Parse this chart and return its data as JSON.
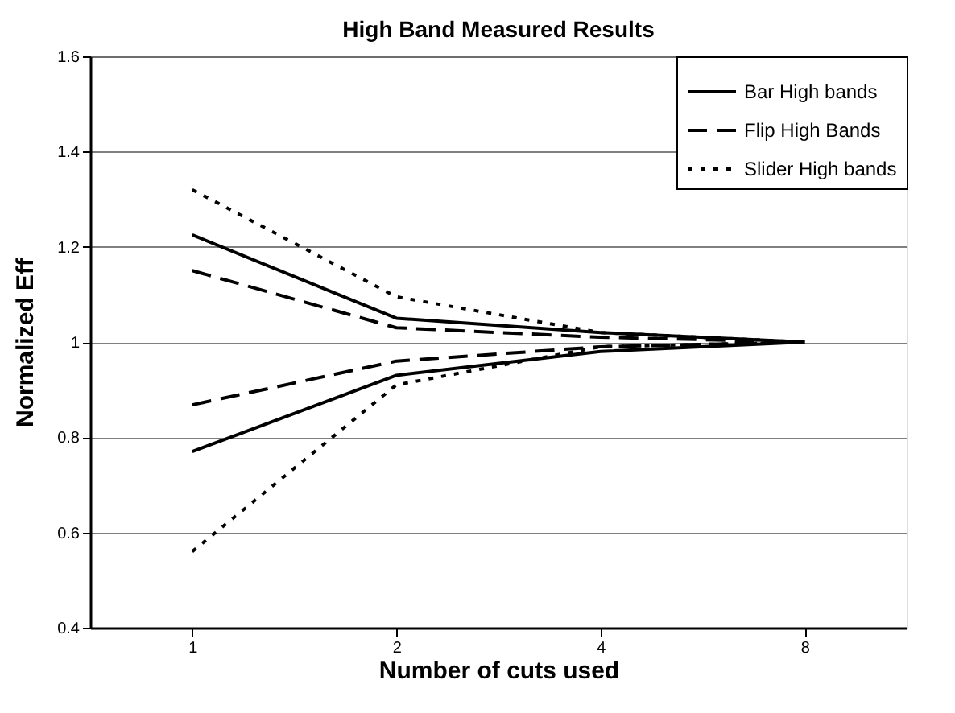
{
  "chart_data": {
    "type": "line",
    "title": "High Band Measured Results",
    "xlabel": "Number of cuts used",
    "ylabel": "Normalized Eff",
    "categories": [
      "1",
      "2",
      "4",
      "8"
    ],
    "series": [
      {
        "name": "Bar High bands",
        "color": "#000000",
        "line_style": "solid",
        "values": [
          1.225,
          1.05,
          1.02,
          1.0
        ]
      },
      {
        "name": "Flip High Bands",
        "color": "#000000",
        "line_style": "dashed",
        "values": [
          1.15,
          1.03,
          1.01,
          1.0
        ]
      },
      {
        "name": "Slider High bands",
        "color": "#000000",
        "line_style": "dotted",
        "values": [
          1.32,
          1.095,
          1.02,
          1.0
        ]
      },
      {
        "color": "#000000",
        "line_style": "solid",
        "values": [
          0.77,
          0.93,
          0.98,
          1.0
        ]
      },
      {
        "color": "#000000",
        "line_style": "dashed",
        "values": [
          0.868,
          0.96,
          0.99,
          1.0
        ]
      },
      {
        "color": "#000000",
        "line_style": "dotted",
        "values": [
          0.56,
          0.91,
          0.99,
          1.0
        ]
      }
    ],
    "ylim": [
      0.4,
      1.6
    ],
    "yticks": [
      0.4,
      0.6,
      0.8,
      1,
      1.2,
      1.4,
      1.6
    ],
    "grid": "y",
    "legend": "top right",
    "marker": "none"
  }
}
